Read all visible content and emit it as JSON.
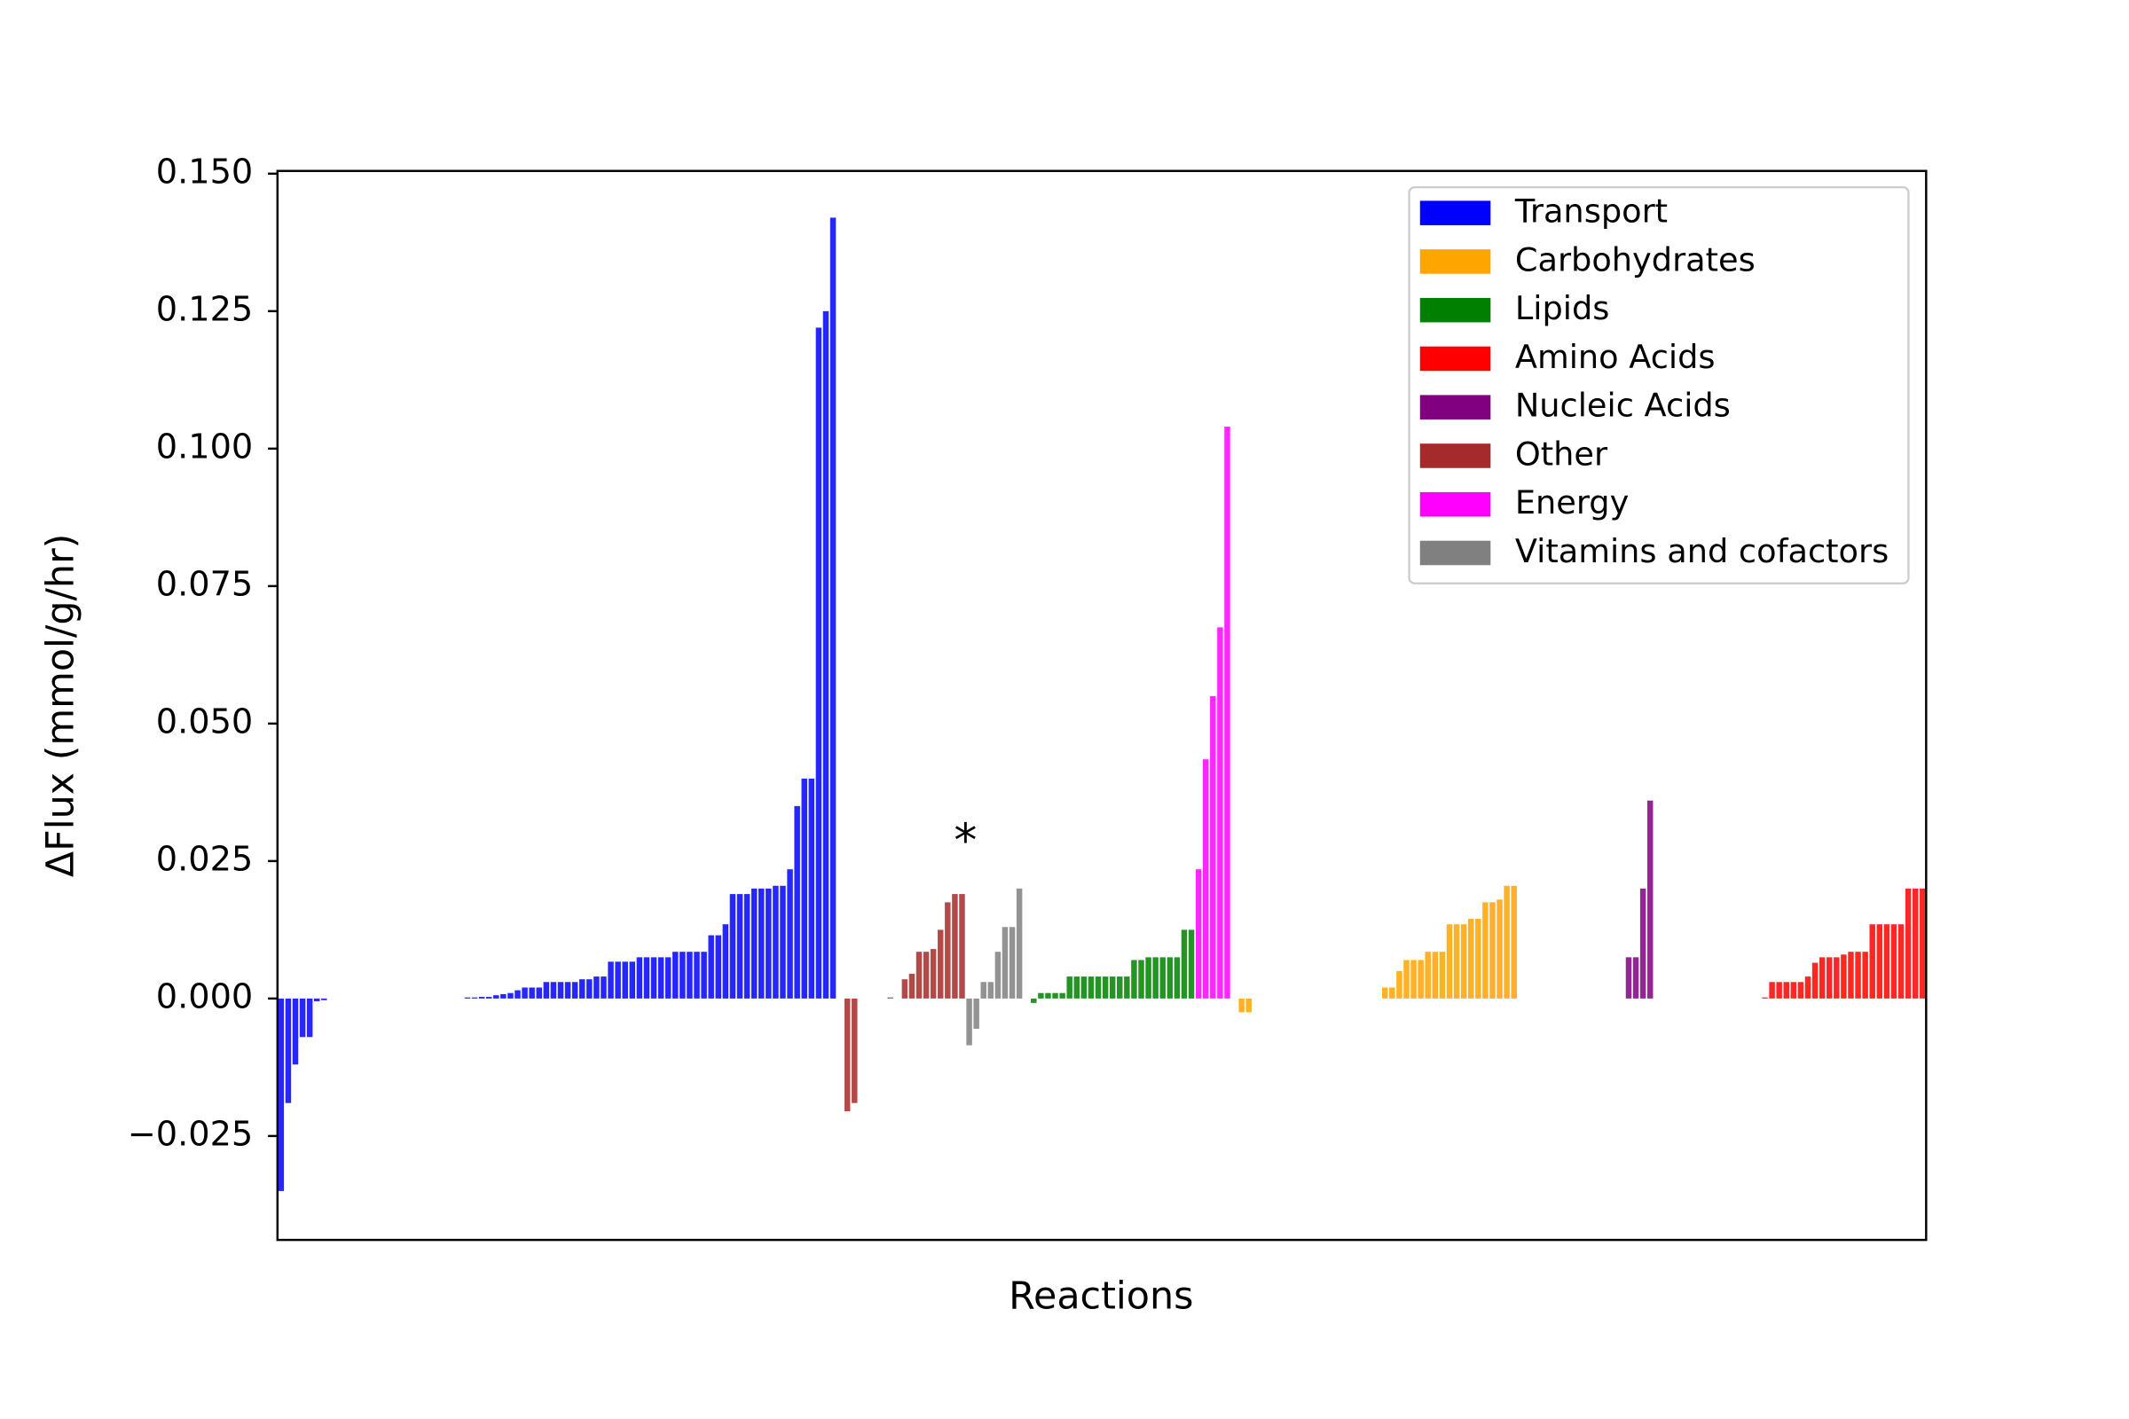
{
  "chart_data": {
    "type": "bar",
    "xlabel": "Reactions",
    "ylabel": "ΔFlux (mmol/g/hr)",
    "xlim": [
      -0.5,
      229.5
    ],
    "ylim": [
      -0.0439,
      0.1505
    ],
    "yticks": [
      {
        "value": -0.025,
        "label": "−0.025"
      },
      {
        "value": 0,
        "label": "0.000"
      },
      {
        "value": 0.025,
        "label": "0.025"
      },
      {
        "value": 0.05,
        "label": "0.050"
      },
      {
        "value": 0.075,
        "label": "0.075"
      },
      {
        "value": 0.1,
        "label": "0.100"
      },
      {
        "value": 0.125,
        "label": "0.125"
      },
      {
        "value": 0.15,
        "label": "0.150"
      }
    ],
    "legend": "upper right",
    "annotations": [
      {
        "text": "*"
      }
    ],
    "series": [
      {
        "name": "Transport",
        "color": "#0000ff",
        "x": [
          0,
          1,
          2,
          3,
          4,
          5,
          6,
          7,
          8,
          9,
          10,
          11,
          12,
          13,
          14,
          15,
          16,
          17,
          18,
          19,
          20,
          21,
          22,
          23,
          24,
          25,
          26,
          27,
          28,
          29,
          30,
          31,
          32,
          33,
          34,
          35,
          36,
          37,
          38,
          39,
          40,
          41,
          42,
          43,
          44,
          45,
          46,
          47,
          48,
          49,
          50,
          51,
          52,
          53,
          54,
          55,
          56,
          57,
          58,
          59,
          60,
          61,
          62,
          63,
          64,
          65,
          66,
          67,
          68,
          69,
          70,
          71,
          72,
          73,
          74,
          75,
          76,
          77
        ],
        "values": [
          -0.035,
          -0.019,
          -0.012,
          -0.007,
          -0.007,
          -0.0005,
          -0.0003,
          0,
          0,
          0,
          0,
          0,
          0,
          0,
          0,
          0,
          0,
          0,
          0,
          0,
          0,
          0,
          0,
          0,
          0,
          0,
          0.0002,
          0.0002,
          0.0003,
          0.0003,
          0.0006,
          0.0008,
          0.001,
          0.0015,
          0.002,
          0.002,
          0.002,
          0.003,
          0.003,
          0.003,
          0.003,
          0.003,
          0.0035,
          0.0035,
          0.004,
          0.004,
          0.0067,
          0.0067,
          0.0067,
          0.0067,
          0.0075,
          0.0075,
          0.0075,
          0.0075,
          0.0075,
          0.0085,
          0.0085,
          0.0085,
          0.0085,
          0.0085,
          0.0115,
          0.0115,
          0.0135,
          0.019,
          0.019,
          0.019,
          0.02,
          0.02,
          0.02,
          0.0205,
          0.0205,
          0.0235,
          0.035,
          0.04,
          0.04,
          0.122,
          0.125,
          0.142
        ]
      },
      {
        "name": "Carbohydrates",
        "color": "#ffa500",
        "x": [
          134,
          135,
          154,
          155,
          156,
          157,
          158,
          159,
          160,
          161,
          162,
          163,
          164,
          165,
          166,
          167,
          168,
          169,
          170,
          171,
          172
        ],
        "values": [
          -0.0025,
          -0.0025,
          0.002,
          0.002,
          0.005,
          0.007,
          0.007,
          0.007,
          0.0085,
          0.0085,
          0.0085,
          0.0135,
          0.0135,
          0.0135,
          0.0145,
          0.0145,
          0.0175,
          0.0175,
          0.018,
          0.0205,
          0.0205
        ]
      },
      {
        "name": "Lipids",
        "color": "#008000",
        "x": [
          105,
          106,
          107,
          108,
          109,
          110,
          111,
          112,
          113,
          114,
          115,
          116,
          117,
          118,
          119,
          120,
          121,
          122,
          123,
          124,
          125,
          126,
          127
        ],
        "values": [
          -0.0008,
          0.001,
          0.001,
          0.001,
          0.001,
          0.004,
          0.004,
          0.004,
          0.004,
          0.004,
          0.004,
          0.004,
          0.004,
          0.004,
          0.007,
          0.007,
          0.0075,
          0.0075,
          0.0075,
          0.0075,
          0.0075,
          0.0125,
          0.0125
        ]
      },
      {
        "name": "Amino Acids",
        "color": "#ff0000",
        "x": [
          207,
          208,
          209,
          210,
          211,
          212,
          213,
          214,
          215,
          216,
          217,
          218,
          219,
          220,
          221,
          222,
          223,
          224,
          225,
          226,
          227,
          228,
          229
        ],
        "values": [
          0.0002,
          0.003,
          0.003,
          0.003,
          0.003,
          0.003,
          0.004,
          0.0065,
          0.0075,
          0.0075,
          0.0075,
          0.008,
          0.0085,
          0.0085,
          0.0085,
          0.0135,
          0.0135,
          0.0135,
          0.0135,
          0.0135,
          0.02,
          0.02,
          0.02
        ]
      },
      {
        "name": "Nucleic Acids",
        "color": "#800080",
        "x": [
          188,
          189,
          190,
          191
        ],
        "values": [
          0.0075,
          0.0075,
          0.02,
          0.036
        ]
      },
      {
        "name": "Other",
        "color": "#a52a2a",
        "x": [
          79,
          80,
          85,
          87,
          88,
          89,
          90,
          91,
          92,
          93,
          94,
          95
        ],
        "values": [
          -0.0205,
          -0.019,
          0.0002,
          0.0035,
          0.0045,
          0.0085,
          0.0085,
          0.009,
          0.0125,
          0.0175,
          0.019,
          0.019
        ]
      },
      {
        "name": "Energy",
        "color": "#ff00ff",
        "x": [
          128,
          129,
          130,
          131,
          132
        ],
        "values": [
          0.0235,
          0.0435,
          0.055,
          0.0675,
          0.104
        ]
      },
      {
        "name": "Vitamins and cofactors",
        "color": "#808080",
        "x": [
          96,
          97,
          98,
          99,
          100,
          101,
          102,
          103
        ],
        "values": [
          -0.0085,
          -0.0055,
          0.003,
          0.003,
          0.0085,
          0.013,
          0.013,
          0.02
        ]
      }
    ]
  }
}
